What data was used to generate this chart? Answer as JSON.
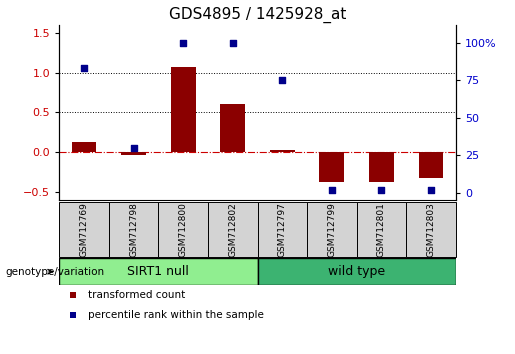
{
  "title": "GDS4895 / 1425928_at",
  "samples": [
    "GSM712769",
    "GSM712798",
    "GSM712800",
    "GSM712802",
    "GSM712797",
    "GSM712799",
    "GSM712801",
    "GSM712803"
  ],
  "group_labels": [
    "SIRT1 null",
    "wild type"
  ],
  "group_colors": [
    "#90ee90",
    "#3cb371"
  ],
  "transformed_count": [
    0.13,
    -0.04,
    1.07,
    0.6,
    0.03,
    -0.37,
    -0.37,
    -0.32
  ],
  "percentile_rank_right": [
    83,
    30,
    100,
    100,
    75,
    2,
    2,
    2
  ],
  "bar_color": "#8b0000",
  "scatter_color": "#00008b",
  "ylim_left": [
    -0.6,
    1.6
  ],
  "ylim_right": [
    -5,
    112
  ],
  "yticks_left": [
    -0.5,
    0.0,
    0.5,
    1.0,
    1.5
  ],
  "yticks_right": [
    0,
    25,
    50,
    75,
    100
  ],
  "ylabel_left_color": "#cc0000",
  "ylabel_right_color": "#0000cc",
  "zero_line_color": "#cc0000",
  "dotted_lines": [
    0.5,
    1.0
  ],
  "genotype_label": "genotype/variation",
  "legend_bar_label": "transformed count",
  "legend_scatter_label": "percentile rank within the sample",
  "title_fontsize": 11,
  "tick_fontsize": 8,
  "label_fontsize": 8,
  "group_fontsize": 9
}
